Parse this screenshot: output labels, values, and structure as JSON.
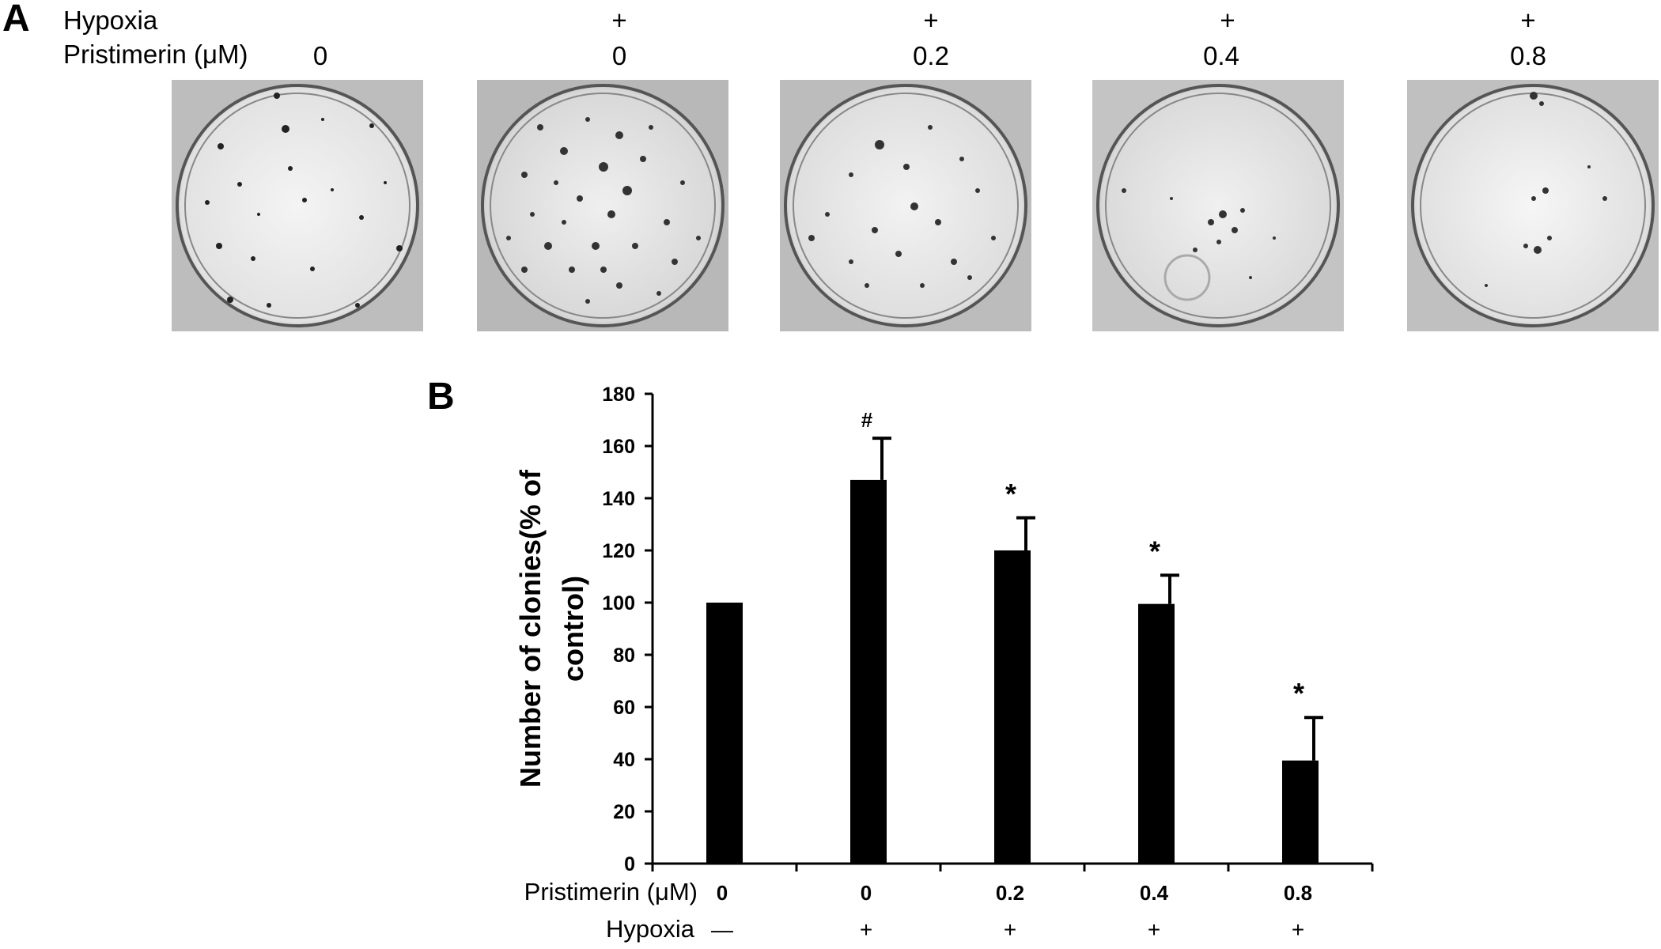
{
  "panel_a": {
    "letter": "A",
    "row_labels": {
      "hypoxia": "Hypoxia",
      "pristimerin": "Pristimerin (μM)"
    },
    "columns": [
      {
        "hypoxia": "",
        "pristimerin": "0"
      },
      {
        "hypoxia": "+",
        "pristimerin": "0"
      },
      {
        "hypoxia": "+",
        "pristimerin": "0.2"
      },
      {
        "hypoxia": "+",
        "pristimerin": "0.4"
      },
      {
        "hypoxia": "+",
        "pristimerin": "0.8"
      }
    ],
    "images": [
      {
        "icon": "petri-dish-colony-photo",
        "colonies": "moderate"
      },
      {
        "icon": "petri-dish-colony-photo",
        "colonies": "many"
      },
      {
        "icon": "petri-dish-colony-photo",
        "colonies": "moderate"
      },
      {
        "icon": "petri-dish-colony-photo",
        "colonies": "few"
      },
      {
        "icon": "petri-dish-colony-photo",
        "colonies": "very few"
      }
    ]
  },
  "panel_b": {
    "letter": "B"
  },
  "chart_data": {
    "type": "bar",
    "categories": [
      "0",
      "0",
      "0.2",
      "0.4",
      "0.8"
    ],
    "hypoxia": [
      "—",
      "+",
      "+",
      "+",
      "+"
    ],
    "values": [
      100,
      147,
      120,
      99.5,
      39.5
    ],
    "errors": [
      0,
      16,
      12.5,
      11,
      16.5
    ],
    "annotations": [
      "",
      "#",
      "*",
      "*",
      "*"
    ],
    "ylabel_line1": "Number of clonies(% of",
    "ylabel_line2": "control)",
    "row_label_pristimerin": "Pristimerin (μM)",
    "row_label_hypoxia": "Hypoxia",
    "ylim": [
      0,
      180
    ],
    "yticks": [
      0,
      20,
      40,
      60,
      80,
      100,
      120,
      140,
      160,
      180
    ],
    "bar_color": "#000000",
    "grid": false
  }
}
